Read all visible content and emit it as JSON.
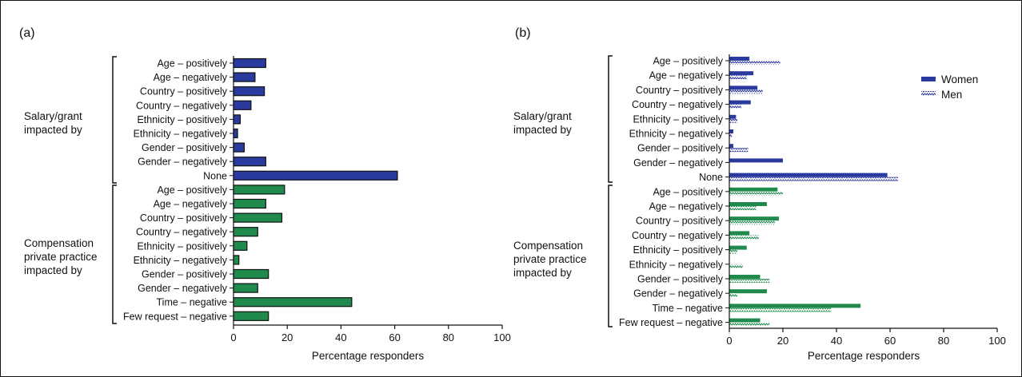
{
  "colors": {
    "salary": "#2b3a9e",
    "compensation": "#1f8a4c",
    "frame": "#111111"
  },
  "chart_data": [
    {
      "panel_label": "(a)",
      "type": "bar",
      "orientation": "horizontal",
      "xlabel": "Percentage responders",
      "xlim": [
        0,
        100
      ],
      "xticks": [
        "0",
        "20",
        "40",
        "60",
        "80",
        "100"
      ],
      "groups": [
        {
          "label_lines": [
            "Salary/grant",
            "impacted by"
          ],
          "color": "#2b3a9e",
          "categories": [
            "Age – positively",
            "Age – negatively",
            "Country – positively",
            "Country – negatively",
            "Ethnicity – positively",
            "Ethnicity – negatively",
            "Gender – positively",
            "Gender – negatively",
            "None"
          ],
          "values": [
            12,
            8,
            11.5,
            6.5,
            2.5,
            1.5,
            4,
            12,
            61
          ]
        },
        {
          "label_lines": [
            "Compensation",
            "private practice",
            "impacted by"
          ],
          "color": "#1f8a4c",
          "categories": [
            "Age – positively",
            "Age – negatively",
            "Country – positively",
            "Country – negatively",
            "Ethnicity – positively",
            "Ethnicity – negatively",
            "Gender – positively",
            "Gender – negatively",
            "Time – negative",
            "Few request – negative"
          ],
          "values": [
            19,
            12,
            18,
            9,
            5,
            2,
            13,
            9,
            44,
            13
          ]
        }
      ]
    },
    {
      "panel_label": "(b)",
      "type": "bar",
      "orientation": "horizontal",
      "xlabel": "Percentage responders",
      "xlim": [
        0,
        100
      ],
      "xticks": [
        "0",
        "20",
        "40",
        "60",
        "80",
        "100"
      ],
      "legend": {
        "position": "top-right",
        "entries": [
          "Women",
          "Men"
        ]
      },
      "groups": [
        {
          "label_lines": [
            "Salary/grant",
            "impacted by"
          ],
          "color": "#2b3a9e",
          "categories": [
            "Age – positively",
            "Age – negatively",
            "Country – positively",
            "Country – negatively",
            "Ethnicity – positively",
            "Ethnicity – negatively",
            "Gender – positively",
            "Gender – negatively",
            "None"
          ],
          "series": [
            {
              "name": "Women",
              "values": [
                7.5,
                9,
                10.5,
                8,
                2.5,
                1.5,
                1.5,
                20,
                59
              ]
            },
            {
              "name": "Men",
              "values": [
                19,
                6.5,
                12.5,
                4.5,
                3,
                1,
                7,
                0,
                63
              ]
            }
          ]
        },
        {
          "label_lines": [
            "Compensation",
            "private practice",
            "impacted by"
          ],
          "color": "#1f8a4c",
          "categories": [
            "Age – positively",
            "Age – negatively",
            "Country – positively",
            "Country – negatively",
            "Ethnicity – positively",
            "Ethnicity – negatively",
            "Gender – positively",
            "Gender – negatively",
            "Time – negative",
            "Few request – negative"
          ],
          "series": [
            {
              "name": "Women",
              "values": [
                18,
                14,
                18.5,
                7.5,
                6.5,
                0,
                11.5,
                14,
                49,
                11.5
              ]
            },
            {
              "name": "Men",
              "values": [
                20,
                10,
                17,
                11,
                3,
                5,
                15,
                3,
                38,
                15
              ]
            }
          ]
        }
      ]
    }
  ]
}
